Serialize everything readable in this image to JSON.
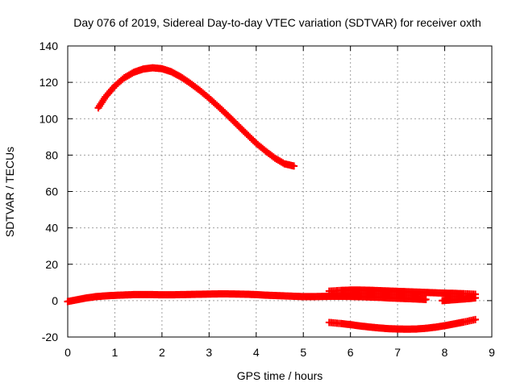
{
  "chart_data": {
    "type": "scatter",
    "title": "Day 076 of 2019, Sidereal Day-to-day VTEC variation (SDTVAR) for receiver oxth",
    "xlabel": "GPS time / hours",
    "ylabel": "SDTVAR / TECUs",
    "xlim": [
      0,
      9
    ],
    "ylim": [
      -20,
      140
    ],
    "xticks": [
      0,
      1,
      2,
      3,
      4,
      5,
      6,
      7,
      8,
      9
    ],
    "yticks": [
      -20,
      0,
      20,
      40,
      60,
      80,
      100,
      120,
      140
    ],
    "grid": true,
    "legend": "none",
    "marker": "plus",
    "color": "#ff0000",
    "series": [
      {
        "x": [
          0.65,
          0.8,
          1.0,
          1.2,
          1.4,
          1.6,
          1.8,
          2.0,
          2.2,
          2.4,
          2.6,
          2.8,
          3.0,
          3.2,
          3.4,
          3.6,
          3.8,
          4.0,
          4.2,
          4.4,
          4.6,
          4.8
        ],
        "y": [
          106,
          112,
          118,
          122.5,
          125.5,
          127.3,
          128,
          127.5,
          125.8,
          123,
          119.5,
          115.6,
          111.3,
          106.6,
          101.7,
          96.6,
          91.5,
          86.5,
          82.2,
          78.3,
          75.2,
          74
        ]
      },
      {
        "x": [
          0.0,
          0.2,
          0.4,
          0.6,
          0.8,
          1.0,
          1.2,
          1.4,
          1.6,
          1.8,
          2.0,
          2.2,
          2.4,
          2.6,
          2.8,
          3.0,
          3.2,
          3.4,
          3.6,
          3.8,
          4.0,
          4.2,
          4.4,
          4.6,
          4.8,
          5.0,
          5.2,
          5.4,
          5.6,
          5.8,
          6.0,
          6.2
        ],
        "y": [
          -0.5,
          0.5,
          1.5,
          2.2,
          2.6,
          2.9,
          3.1,
          3.3,
          3.3,
          3.3,
          3.2,
          3.2,
          3.3,
          3.4,
          3.5,
          3.6,
          3.7,
          3.7,
          3.6,
          3.5,
          3.3,
          3.0,
          2.8,
          2.6,
          2.4,
          2.2,
          2.2,
          2.3,
          2.4,
          2.4,
          2.3,
          2.2
        ]
      },
      {
        "x": [
          5.55,
          5.8,
          6.0,
          6.2,
          6.4,
          6.6,
          6.8,
          7.0,
          7.2,
          7.4,
          7.6,
          7.8,
          8.0,
          8.2,
          8.4,
          8.65
        ],
        "y": [
          5.2,
          5.6,
          5.8,
          5.8,
          5.7,
          5.5,
          5.3,
          5.1,
          4.9,
          4.7,
          4.5,
          4.3,
          4.1,
          4.0,
          3.8,
          3.5
        ]
      },
      {
        "x": [
          5.6,
          5.8,
          6.0,
          6.2,
          6.4,
          6.6,
          6.8,
          7.0,
          7.2,
          7.4,
          7.6
        ],
        "y": [
          2.8,
          2.6,
          2.4,
          2.2,
          2.0,
          1.8,
          1.5,
          1.3,
          1.1,
          0.9,
          0.6
        ]
      },
      {
        "x": [
          7.95,
          8.1,
          8.3,
          8.5,
          8.65
        ],
        "y": [
          0.0,
          0.3,
          0.7,
          1.1,
          1.5
        ]
      },
      {
        "x": [
          5.55,
          5.8,
          6.0,
          6.2,
          6.4,
          6.6,
          6.8,
          7.0,
          7.2,
          7.4,
          7.6,
          7.8,
          8.0,
          8.2,
          8.4,
          8.65
        ],
        "y": [
          -12,
          -12.6,
          -13.2,
          -13.9,
          -14.5,
          -15.0,
          -15.4,
          -15.6,
          -15.7,
          -15.6,
          -15.2,
          -14.6,
          -13.8,
          -12.8,
          -11.8,
          -10.4
        ]
      }
    ]
  }
}
